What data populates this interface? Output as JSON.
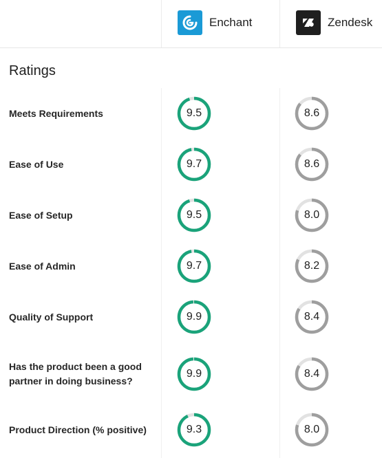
{
  "products": [
    {
      "name": "Enchant",
      "logo_icon": "enchant-logo-icon",
      "logo_color": "#1a9ad6"
    },
    {
      "name": "Zendesk",
      "logo_icon": "zendesk-logo-icon",
      "logo_color": "#1f1f1f"
    }
  ],
  "section_title": "Ratings",
  "colors": {
    "enchant_ring": "#1aa37a",
    "zendesk_ring": "#9e9e9e",
    "track": "#e2e2e2"
  },
  "scale_max": 10,
  "ratings": [
    {
      "label": "Meets Requirements",
      "enchant": "9.5",
      "zendesk": "8.6"
    },
    {
      "label": "Ease of Use",
      "enchant": "9.7",
      "zendesk": "8.6"
    },
    {
      "label": "Ease of Setup",
      "enchant": "9.5",
      "zendesk": "8.0"
    },
    {
      "label": "Ease of Admin",
      "enchant": "9.7",
      "zendesk": "8.2"
    },
    {
      "label": "Quality of Support",
      "enchant": "9.9",
      "zendesk": "8.4"
    },
    {
      "label": "Has the product been a good partner in doing business?",
      "enchant": "9.9",
      "zendesk": "8.4"
    },
    {
      "label": "Product Direction (% positive)",
      "enchant": "9.3",
      "zendesk": "8.0"
    }
  ]
}
